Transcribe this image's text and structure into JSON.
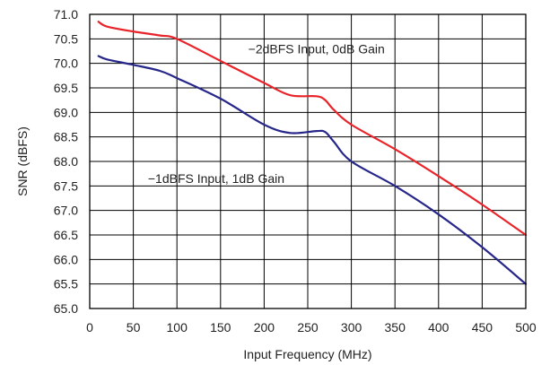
{
  "chart_data": {
    "type": "line",
    "xlabel": "Input Frequency (MHz)",
    "ylabel": "SNR (dBFS)",
    "xlim": [
      0,
      500
    ],
    "ylim": [
      65.0,
      71.0
    ],
    "x_ticks": [
      "0",
      "50",
      "100",
      "150",
      "200",
      "250",
      "300",
      "350",
      "400",
      "450",
      "500"
    ],
    "y_ticks": [
      "71.0",
      "70.5",
      "70.0",
      "69.5",
      "69.0",
      "68.5",
      "68.0",
      "67.5",
      "67.0",
      "66.5",
      "66.0",
      "65.5",
      "65.0"
    ],
    "grid": true,
    "series": [
      {
        "name": "−2dBFS Input, 0dB Gain",
        "color": "#e8242a",
        "x": [
          10,
          20,
          50,
          80,
          100,
          150,
          200,
          230,
          260,
          270,
          280,
          300,
          350,
          400,
          450,
          500
        ],
        "y": [
          70.85,
          70.75,
          70.65,
          70.57,
          70.5,
          70.05,
          69.6,
          69.35,
          69.33,
          69.25,
          69.05,
          68.75,
          68.25,
          67.7,
          67.12,
          66.5
        ]
      },
      {
        "name": "−1dBFS Input, 1dB Gain",
        "color": "#27278a",
        "x": [
          10,
          20,
          50,
          80,
          100,
          150,
          200,
          230,
          260,
          270,
          280,
          300,
          350,
          400,
          450,
          500
        ],
        "y": [
          70.15,
          70.08,
          69.97,
          69.85,
          69.7,
          69.28,
          68.75,
          68.58,
          68.62,
          68.6,
          68.4,
          68.0,
          67.5,
          66.92,
          66.25,
          65.5
        ]
      }
    ],
    "annotations": [
      {
        "text": "−2dBFS Input, 0dB Gain",
        "x": 260,
        "y": 70.3
      },
      {
        "text": "−1dBFS Input, 1dB Gain",
        "x": 145,
        "y": 67.65
      }
    ]
  }
}
